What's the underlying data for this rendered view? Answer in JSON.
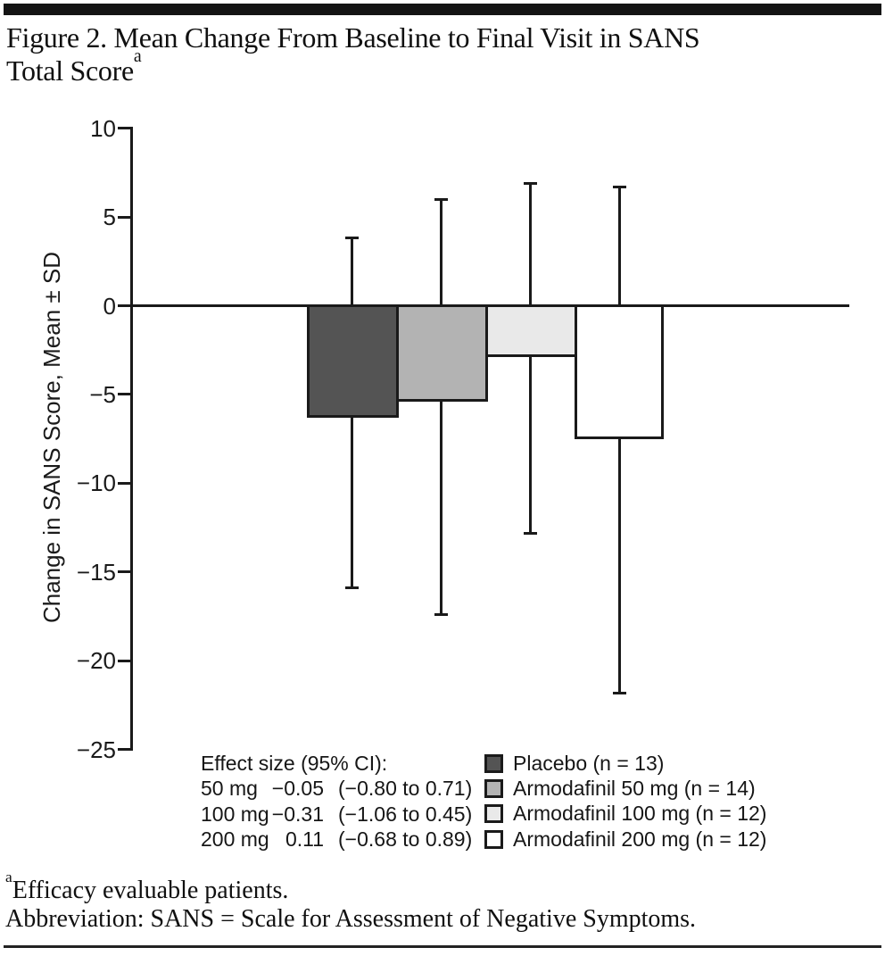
{
  "figure": {
    "title_line1": "Figure 2. Mean Change From Baseline to Final Visit in SANS",
    "title_line2": "Total Score",
    "title_superscript": "a"
  },
  "chart_data": {
    "type": "bar",
    "title": "Mean Change From Baseline to Final Visit in SANS Total Score",
    "xlabel": "",
    "ylabel": "Change in SANS Score, Mean ± SD",
    "ylim": [
      -25,
      10
    ],
    "yticks": [
      10,
      5,
      0,
      -5,
      -10,
      -15,
      -20,
      -25
    ],
    "ytick_labels": [
      "10",
      "5",
      "0",
      "−5",
      "−10",
      "−15",
      "−20",
      "−25"
    ],
    "grid": false,
    "error_bars": "mean ± SD",
    "legend_position": "bottom-right",
    "series": [
      {
        "name": "Placebo (n = 13)",
        "mean": -6.3,
        "upper": 3.8,
        "lower": -15.9,
        "color": "#545454"
      },
      {
        "name": "Armodafinil 50 mg (n = 14)",
        "mean": -5.4,
        "upper": 6.0,
        "lower": -17.4,
        "color": "#b3b3b3"
      },
      {
        "name": "Armodafinil 100 mg (n = 12)",
        "mean": -2.9,
        "upper": 6.9,
        "lower": -12.8,
        "color": "#e9e9e9"
      },
      {
        "name": "Armodafinil 200 mg (n = 12)",
        "mean": -7.5,
        "upper": 6.7,
        "lower": -21.8,
        "color": "#ffffff"
      }
    ],
    "line_color": "#1a1a1a"
  },
  "effect_size": {
    "header": "Effect size (95% CI):",
    "rows": [
      {
        "dose": "50 mg",
        "value": "−0.05",
        "ci": "(−0.80 to 0.71)"
      },
      {
        "dose": "100 mg",
        "value": "−0.31",
        "ci": "(−1.06 to 0.45)"
      },
      {
        "dose": "200 mg",
        "value": "0.11",
        "ci": "(−0.68 to 0.89)"
      }
    ]
  },
  "footnotes": {
    "a_marker": "a",
    "a_text": "Efficacy evaluable patients.",
    "abbreviation": "Abbreviation: SANS = Scale for Assessment of Negative Symptoms."
  }
}
